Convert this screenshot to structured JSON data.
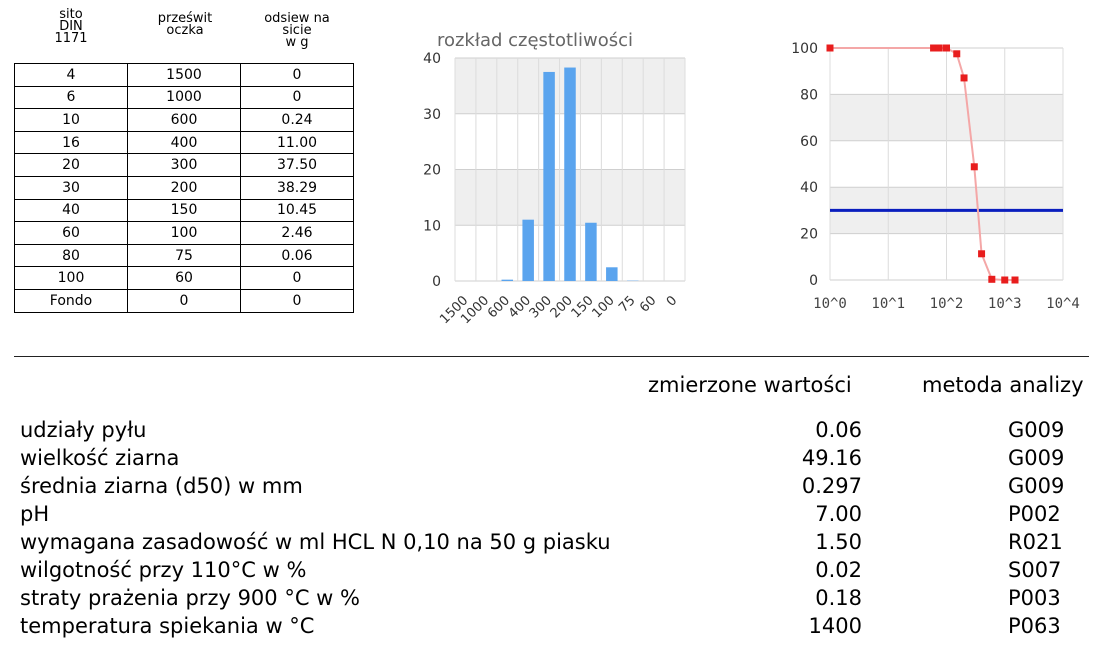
{
  "sieve_table": {
    "headers": {
      "col1": [
        "sito",
        "DIN",
        "1171"
      ],
      "col2": [
        "prześwit",
        "oczka"
      ],
      "col3": [
        "odsiew na",
        "sicie",
        "w g"
      ]
    },
    "rows": [
      [
        "4",
        "1500",
        "0"
      ],
      [
        "6",
        "1000",
        "0"
      ],
      [
        "10",
        "600",
        "0.24"
      ],
      [
        "16",
        "400",
        "11.00"
      ],
      [
        "20",
        "300",
        "37.50"
      ],
      [
        "30",
        "200",
        "38.29"
      ],
      [
        "40",
        "150",
        "10.45"
      ],
      [
        "60",
        "100",
        "2.46"
      ],
      [
        "80",
        "75",
        "0.06"
      ],
      [
        "100",
        "60",
        "0"
      ],
      [
        "Fondo",
        "0",
        "0"
      ]
    ]
  },
  "chart_data": [
    {
      "type": "bar",
      "title": "rozkład częstotliwości",
      "categories": [
        "1500",
        "1000",
        "600",
        "400",
        "300",
        "200",
        "150",
        "100",
        "75",
        "60",
        "0"
      ],
      "values": [
        0,
        0,
        0.24,
        11.0,
        37.5,
        38.29,
        10.45,
        2.46,
        0.06,
        0,
        0
      ],
      "ylim": [
        0,
        40
      ],
      "yticks": [
        "0",
        "10",
        "20",
        "30",
        "40"
      ],
      "color": "#5aa4ee",
      "grid": true
    },
    {
      "type": "line",
      "x_scale": "log",
      "xlim": [
        1,
        10000
      ],
      "ylim": [
        0,
        100
      ],
      "xticks": [
        "10^0",
        "10^1",
        "10^2",
        "10^3",
        "10^4"
      ],
      "yticks": [
        "0",
        "20",
        "40",
        "60",
        "80",
        "100"
      ],
      "series": [
        {
          "x": [
            1,
            60,
            75,
            100,
            150,
            200,
            300,
            400,
            600,
            1000,
            1500
          ],
          "y": [
            100,
            100,
            100,
            100,
            97.5,
            87.1,
            48.8,
            11.3,
            0.3,
            0,
            0
          ],
          "line_color": "#f4a7a7",
          "marker_color": "#e81d1d"
        }
      ],
      "reference_line": {
        "y": 30,
        "color": "#0a1ebe"
      },
      "grid": true
    }
  ],
  "results": {
    "headers": {
      "measured": "zmierzone wartości",
      "method": "metoda analizy"
    },
    "rows": [
      {
        "label": "udziały pyłu",
        "value": "0.06",
        "method": "G009"
      },
      {
        "label": "wielkość ziarna",
        "value": "49.16",
        "method": "G009"
      },
      {
        "label": "średnia ziarna (d50) w mm",
        "value": "0.297",
        "method": "G009"
      },
      {
        "label": "pH",
        "value": "7.00",
        "method": "P002"
      },
      {
        "label": "wymagana zasadowość w ml HCL N 0,10 na 50 g piasku",
        "value": "1.50",
        "method": "R021"
      },
      {
        "label": "wilgotność przy 110°C w %",
        "value": "0.02",
        "method": "S007"
      },
      {
        "label": "straty prażenia przy 900 °C w %",
        "value": "0.18",
        "method": "P003"
      },
      {
        "label": "temperatura spiekania w °C",
        "value": "1400",
        "method": "P063"
      }
    ]
  }
}
